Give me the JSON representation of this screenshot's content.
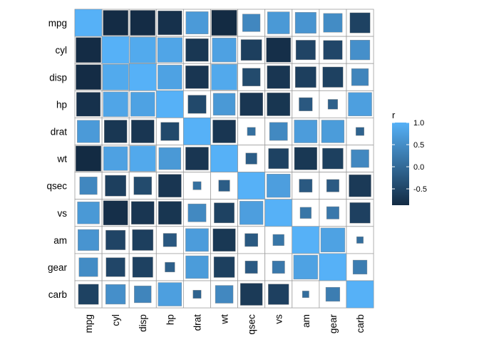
{
  "chart_data": {
    "type": "heatmap",
    "subtype": "correlation matrix, square size proportional to |r|",
    "variables": [
      "mpg",
      "cyl",
      "disp",
      "hp",
      "drat",
      "wt",
      "qsec",
      "vs",
      "am",
      "gear",
      "carb"
    ],
    "matrix": [
      [
        1.0,
        -0.85,
        -0.85,
        -0.78,
        0.68,
        -0.87,
        0.42,
        0.66,
        0.6,
        0.48,
        -0.55
      ],
      [
        -0.85,
        1.0,
        0.9,
        0.83,
        -0.7,
        0.78,
        -0.59,
        -0.81,
        -0.52,
        -0.49,
        0.53
      ],
      [
        -0.85,
        0.9,
        1.0,
        0.79,
        -0.71,
        0.89,
        -0.43,
        -0.71,
        -0.59,
        -0.56,
        0.39
      ],
      [
        -0.78,
        0.83,
        0.79,
        1.0,
        -0.45,
        0.66,
        -0.71,
        -0.72,
        -0.24,
        -0.13,
        0.75
      ],
      [
        0.68,
        -0.7,
        -0.71,
        -0.45,
        1.0,
        -0.71,
        0.09,
        0.44,
        0.71,
        0.7,
        -0.09
      ],
      [
        -0.87,
        0.78,
        0.89,
        0.66,
        -0.71,
        1.0,
        -0.17,
        -0.55,
        -0.69,
        -0.58,
        0.43
      ],
      [
        0.42,
        -0.59,
        -0.43,
        -0.71,
        0.09,
        -0.17,
        1.0,
        0.74,
        -0.23,
        -0.21,
        -0.66
      ],
      [
        0.66,
        -0.81,
        -0.71,
        -0.72,
        0.44,
        -0.55,
        0.74,
        1.0,
        0.17,
        0.21,
        -0.57
      ],
      [
        0.6,
        -0.52,
        -0.59,
        -0.24,
        0.71,
        -0.69,
        -0.23,
        0.17,
        1.0,
        0.79,
        0.06
      ],
      [
        0.48,
        -0.49,
        -0.56,
        -0.13,
        0.7,
        -0.58,
        -0.21,
        0.21,
        0.79,
        1.0,
        0.27
      ],
      [
        -0.55,
        0.53,
        0.39,
        0.75,
        -0.09,
        0.43,
        -0.66,
        -0.57,
        0.06,
        0.27,
        1.0
      ]
    ],
    "xlabel": "",
    "ylabel": "",
    "grid": true,
    "legend": {
      "title": "r",
      "ticks": [
        1.0,
        0.5,
        0.0,
        -0.5
      ],
      "tick_labels": [
        "1.0",
        "0.5",
        "0.0",
        "-0.5"
      ],
      "range": [
        -0.87,
        1.0
      ],
      "placement": "right"
    },
    "colors": {
      "low": "#132B43",
      "high": "#56B1F7",
      "grid": "#9e9e9e",
      "tick_text": "#000000"
    }
  }
}
